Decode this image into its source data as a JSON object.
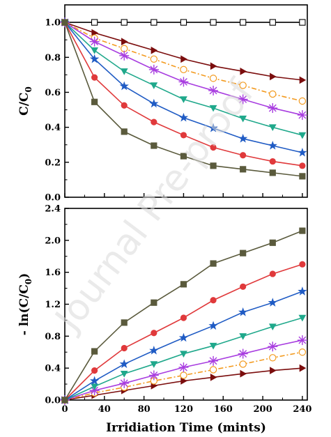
{
  "watermark": "Journal Pre-proof",
  "chart_data": [
    {
      "type": "line",
      "ylabel_main": "C/C",
      "ylabel_sub": "0",
      "xlabel": "",
      "xlim": [
        0,
        245
      ],
      "ylim": [
        0,
        1.1
      ],
      "xticks": [
        0,
        40,
        80,
        120,
        160,
        200,
        240
      ],
      "xtick_labels": [
        "",
        "",
        "",
        "",
        "",
        "",
        ""
      ],
      "yticks": [
        0.0,
        0.2,
        0.4,
        0.6,
        0.8,
        1.0
      ],
      "ytick_labels": [
        "0.0",
        "0.2",
        "0.4",
        "0.6",
        "0.8",
        "1.0"
      ],
      "grid": false,
      "series": [
        {
          "color": "#000000",
          "marker": "square-open",
          "line": "solid",
          "x": [
            0,
            30,
            60,
            90,
            120,
            150,
            180,
            210,
            240
          ],
          "values": [
            1.0,
            1.0,
            1.0,
            1.0,
            1.0,
            1.0,
            1.0,
            1.0,
            1.0
          ]
        },
        {
          "color": "#7b0d0d",
          "marker": "triangle-right",
          "line": "solid",
          "x": [
            0,
            30,
            60,
            90,
            120,
            150,
            180,
            210,
            240
          ],
          "values": [
            1.0,
            0.94,
            0.89,
            0.84,
            0.79,
            0.75,
            0.72,
            0.69,
            0.67
          ]
        },
        {
          "color": "#f39a1e",
          "marker": "circle-open",
          "line": "dashdot",
          "x": [
            0,
            30,
            60,
            90,
            120,
            150,
            180,
            210,
            240
          ],
          "values": [
            1.0,
            0.91,
            0.85,
            0.79,
            0.73,
            0.68,
            0.64,
            0.59,
            0.55
          ]
        },
        {
          "color": "#a83de0",
          "marker": "asterisk",
          "line": "solid",
          "x": [
            0,
            30,
            60,
            90,
            120,
            150,
            180,
            210,
            240
          ],
          "values": [
            1.0,
            0.89,
            0.81,
            0.73,
            0.66,
            0.61,
            0.56,
            0.51,
            0.47
          ]
        },
        {
          "color": "#1fa88b",
          "marker": "triangle-down",
          "line": "solid",
          "x": [
            0,
            30,
            60,
            90,
            120,
            150,
            180,
            210,
            240
          ],
          "values": [
            1.0,
            0.84,
            0.72,
            0.64,
            0.56,
            0.51,
            0.45,
            0.4,
            0.355
          ]
        },
        {
          "color": "#1f5bc4",
          "marker": "star",
          "line": "solid",
          "x": [
            0,
            30,
            60,
            90,
            120,
            150,
            180,
            210,
            240
          ],
          "values": [
            1.0,
            0.79,
            0.635,
            0.535,
            0.455,
            0.395,
            0.335,
            0.295,
            0.255
          ]
        },
        {
          "color": "#e0393b",
          "marker": "circle",
          "line": "solid",
          "x": [
            0,
            30,
            60,
            90,
            120,
            150,
            180,
            210,
            240
          ],
          "values": [
            1.0,
            0.685,
            0.525,
            0.43,
            0.355,
            0.285,
            0.24,
            0.205,
            0.18
          ]
        },
        {
          "color": "#5a5a3c",
          "marker": "square",
          "line": "solid",
          "x": [
            0,
            30,
            60,
            90,
            120,
            150,
            180,
            210,
            240
          ],
          "values": [
            1.0,
            0.545,
            0.375,
            0.295,
            0.235,
            0.18,
            0.16,
            0.14,
            0.12
          ]
        }
      ]
    },
    {
      "type": "line",
      "ylabel_main": "- ln(C/C",
      "ylabel_sub": "0",
      "ylabel_end": ")",
      "xlabel": "Irridiation Time (mints)",
      "xlim": [
        0,
        245
      ],
      "ylim": [
        0,
        2.4
      ],
      "xticks": [
        0,
        40,
        80,
        120,
        160,
        200,
        240
      ],
      "xtick_labels": [
        "0",
        "40",
        "80",
        "120",
        "160",
        "200",
        "240"
      ],
      "yticks": [
        0.0,
        0.4,
        0.8,
        1.2,
        1.6,
        2.0,
        2.4
      ],
      "ytick_labels": [
        "0.0",
        "0.4",
        "0.8",
        "1.2",
        "1.6",
        "2.0",
        "2.4"
      ],
      "grid": false,
      "series": [
        {
          "color": "#7b0d0d",
          "marker": "triangle-right",
          "line": "solid",
          "x": [
            0,
            30,
            60,
            90,
            120,
            150,
            180,
            210,
            240
          ],
          "values": [
            0,
            0.06,
            0.12,
            0.18,
            0.24,
            0.285,
            0.33,
            0.37,
            0.4
          ]
        },
        {
          "color": "#f39a1e",
          "marker": "circle-open",
          "line": "dashdot",
          "x": [
            0,
            30,
            60,
            90,
            120,
            150,
            180,
            210,
            240
          ],
          "values": [
            0,
            0.09,
            0.16,
            0.24,
            0.31,
            0.38,
            0.45,
            0.53,
            0.6
          ]
        },
        {
          "color": "#a83de0",
          "marker": "asterisk",
          "line": "solid",
          "x": [
            0,
            30,
            60,
            90,
            120,
            150,
            180,
            210,
            240
          ],
          "values": [
            0,
            0.12,
            0.21,
            0.31,
            0.41,
            0.49,
            0.58,
            0.67,
            0.75
          ]
        },
        {
          "color": "#1fa88b",
          "marker": "triangle-down",
          "line": "solid",
          "x": [
            0,
            30,
            60,
            90,
            120,
            150,
            180,
            210,
            240
          ],
          "values": [
            0,
            0.17,
            0.33,
            0.45,
            0.58,
            0.68,
            0.8,
            0.92,
            1.03
          ]
        },
        {
          "color": "#1f5bc4",
          "marker": "star",
          "line": "solid",
          "x": [
            0,
            30,
            60,
            90,
            120,
            150,
            180,
            210,
            240
          ],
          "values": [
            0,
            0.24,
            0.45,
            0.62,
            0.78,
            0.93,
            1.1,
            1.22,
            1.36
          ]
        },
        {
          "color": "#e0393b",
          "marker": "circle",
          "line": "solid",
          "x": [
            0,
            30,
            60,
            90,
            120,
            150,
            180,
            210,
            240
          ],
          "values": [
            0,
            0.37,
            0.65,
            0.84,
            1.03,
            1.25,
            1.42,
            1.58,
            1.7
          ]
        },
        {
          "color": "#5a5a3c",
          "marker": "square",
          "line": "solid",
          "x": [
            0,
            30,
            60,
            90,
            120,
            150,
            180,
            210,
            240
          ],
          "values": [
            0,
            0.61,
            0.97,
            1.22,
            1.45,
            1.71,
            1.84,
            1.97,
            2.12
          ]
        }
      ]
    }
  ]
}
